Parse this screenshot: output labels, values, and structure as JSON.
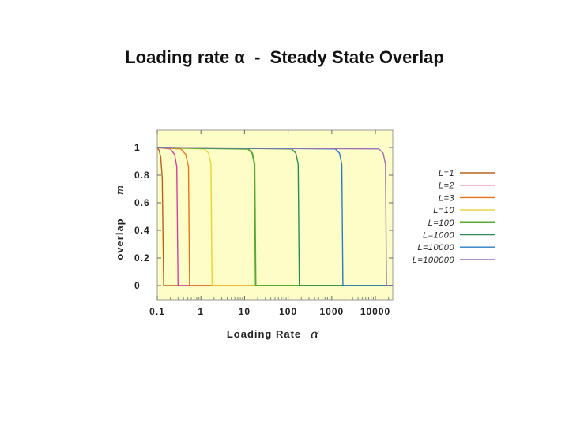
{
  "page": {
    "title": "Loading rate α  -  Steady State Overlap"
  },
  "chart_data": {
    "type": "line",
    "xlabel": "Loading Rate",
    "xlabel_symbol": "α",
    "ylabel": "overlap",
    "ylabel_symbol": "m",
    "x_scale": "log",
    "xlim": [
      0.1,
      25000
    ],
    "ylim": [
      0,
      1
    ],
    "x_ticks": [
      0.1,
      1,
      10,
      100,
      1000,
      10000
    ],
    "x_tick_labels": [
      "0.1",
      "1",
      "10",
      "100",
      "1000",
      "10000"
    ],
    "y_ticks": [
      0,
      0.2,
      0.4,
      0.6,
      0.8,
      1
    ],
    "y_tick_labels": [
      "0",
      "0.2",
      "0.4",
      "0.6",
      "0.8",
      "1"
    ],
    "background": "#fdfdc8",
    "grid": false,
    "legend_position": "right",
    "series": [
      {
        "name": "L=1",
        "color": "#b5651d",
        "alpha_c": 0.14,
        "x": [
          0.1,
          0.11,
          0.12,
          0.13,
          0.14,
          0.15,
          25000
        ],
        "y": [
          1,
          0.98,
          0.93,
          0.78,
          0,
          0,
          0
        ]
      },
      {
        "name": "L=2",
        "color": "#d63fa0",
        "alpha_c": 0.3,
        "x": [
          0.1,
          0.2,
          0.25,
          0.28,
          0.3,
          0.31,
          25000
        ],
        "y": [
          1,
          0.99,
          0.95,
          0.86,
          0,
          0,
          0
        ]
      },
      {
        "name": "L=3",
        "color": "#e8741a",
        "alpha_c": 0.55,
        "x": [
          0.1,
          0.35,
          0.45,
          0.52,
          0.55,
          0.56,
          25000
        ],
        "y": [
          1,
          0.99,
          0.95,
          0.86,
          0,
          0,
          0
        ]
      },
      {
        "name": "L=10",
        "color": "#e8d232",
        "alpha_c": 1.8,
        "x": [
          0.1,
          1.2,
          1.5,
          1.7,
          1.8,
          1.85,
          25000
        ],
        "y": [
          1,
          0.99,
          0.96,
          0.88,
          0,
          0,
          0
        ]
      },
      {
        "name": "L=100",
        "color": "#5aaa32",
        "alpha_c": 18,
        "x": [
          0.1,
          12,
          15,
          17,
          18,
          18.5,
          25000
        ],
        "y": [
          1,
          0.99,
          0.96,
          0.88,
          0,
          0,
          0
        ]
      },
      {
        "name": "L=1000",
        "color": "#2e8b57",
        "alpha_c": 180,
        "x": [
          0.1,
          120,
          150,
          170,
          180,
          185,
          25000
        ],
        "y": [
          1,
          0.99,
          0.96,
          0.88,
          0,
          0,
          0
        ]
      },
      {
        "name": "L=10000",
        "color": "#2a7bc8",
        "alpha_c": 1800,
        "x": [
          0.1,
          1200,
          1500,
          1700,
          1800,
          1850,
          25000
        ],
        "y": [
          1,
          0.99,
          0.96,
          0.88,
          0,
          0,
          0
        ]
      },
      {
        "name": "L=100000",
        "color": "#9b6fb8",
        "alpha_c": 18000,
        "x": [
          0.1,
          12000,
          15000,
          17000,
          18000,
          18500,
          25000
        ],
        "y": [
          1,
          0.99,
          0.96,
          0.88,
          0,
          0,
          0
        ]
      }
    ]
  }
}
